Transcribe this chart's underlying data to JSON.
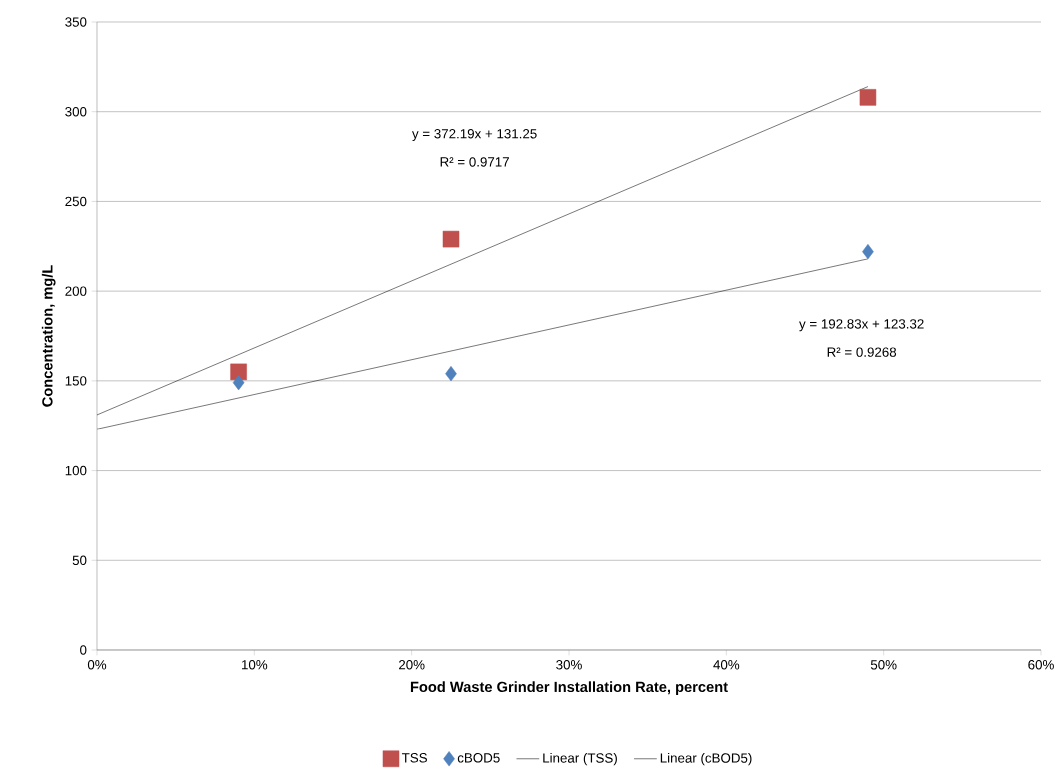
{
  "chart_data": {
    "type": "scatter",
    "xlabel": "Food Waste Grinder Installation Rate, percent",
    "ylabel": "Concentration, mg/L",
    "xlim": [
      0,
      0.6
    ],
    "xticks": [
      {
        "value": 0,
        "label": "0%"
      },
      {
        "value": 0.1,
        "label": "10%"
      },
      {
        "value": 0.2,
        "label": "20%"
      },
      {
        "value": 0.3,
        "label": "30%"
      },
      {
        "value": 0.4,
        "label": "40%"
      },
      {
        "value": 0.5,
        "label": "50%"
      },
      {
        "value": 0.6,
        "label": "60%"
      }
    ],
    "ylim": [
      0,
      350
    ],
    "yticks": [
      0,
      50,
      100,
      150,
      200,
      250,
      300,
      350
    ],
    "grid": "y",
    "legend": "bottom",
    "series": [
      {
        "name": "TSS",
        "marker": "square",
        "color": "#c0504d",
        "x": [
          0.09,
          0.225,
          0.49
        ],
        "values": [
          155,
          229,
          308
        ]
      },
      {
        "name": "cBOD5",
        "marker": "diamond",
        "color": "#4f81bd",
        "x": [
          0.09,
          0.225,
          0.49
        ],
        "values": [
          149,
          154,
          222
        ]
      },
      {
        "name": "Linear (TSS)",
        "type": "line",
        "marker": "none",
        "color": "#000000",
        "x": [
          0,
          0.49
        ],
        "values": [
          131,
          314
        ]
      },
      {
        "name": "Linear (cBOD5)",
        "type": "line",
        "marker": "none",
        "color": "#000000",
        "x": [
          0,
          0.49
        ],
        "values": [
          123,
          218
        ]
      }
    ],
    "annotations": [
      "y = 372.19x + 131.25",
      "R² = 0.9717",
      "y = 192.83x + 123.32",
      "R² = 0.9268"
    ]
  }
}
